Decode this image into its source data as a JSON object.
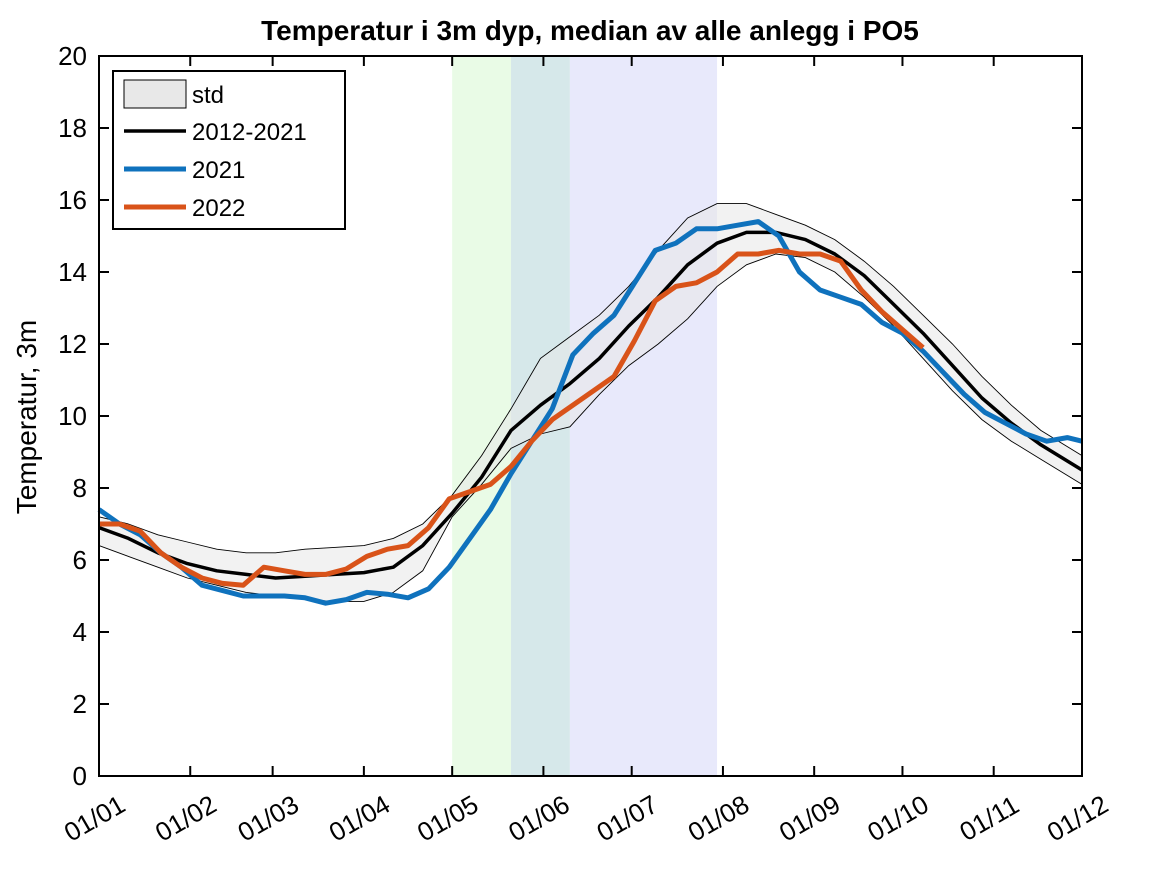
{
  "chart_data": {
    "type": "line",
    "title": "Temperatur i 3m dyp, median av alle anlegg i PO5",
    "xlabel": "",
    "ylabel": "Temperatur, 3m",
    "xlim": [
      0,
      334
    ],
    "ylim": [
      0,
      20
    ],
    "x_ticks": [
      {
        "day": 0,
        "label": "01/01"
      },
      {
        "day": 31,
        "label": "01/02"
      },
      {
        "day": 59,
        "label": "01/03"
      },
      {
        "day": 90,
        "label": "01/04"
      },
      {
        "day": 120,
        "label": "01/05"
      },
      {
        "day": 151,
        "label": "01/06"
      },
      {
        "day": 181,
        "label": "01/07"
      },
      {
        "day": 212,
        "label": "01/08"
      },
      {
        "day": 243,
        "label": "01/09"
      },
      {
        "day": 273,
        "label": "01/10"
      },
      {
        "day": 304,
        "label": "01/11"
      },
      {
        "day": 334,
        "label": "01/12"
      }
    ],
    "y_ticks": [
      0,
      2,
      4,
      6,
      8,
      10,
      12,
      14,
      16,
      18,
      20
    ],
    "shaded_regions": [
      {
        "x0": 120,
        "x1": 140,
        "color": "#e9fbe6"
      },
      {
        "x0": 140,
        "x1": 160,
        "color": "#d6e8ea"
      },
      {
        "x0": 160,
        "x1": 210,
        "color": "#e8e9fb"
      }
    ],
    "band": {
      "name": "std",
      "fill": "#e8e8e8",
      "x": [
        0,
        10,
        20,
        30,
        40,
        50,
        60,
        70,
        80,
        90,
        100,
        110,
        120,
        130,
        140,
        150,
        160,
        170,
        180,
        190,
        200,
        210,
        220,
        230,
        240,
        250,
        260,
        270,
        280,
        290,
        300,
        310,
        320,
        334
      ],
      "upper": [
        7.2,
        7.0,
        6.7,
        6.5,
        6.3,
        6.2,
        6.2,
        6.3,
        6.35,
        6.4,
        6.6,
        7.0,
        7.8,
        8.9,
        10.2,
        11.6,
        12.2,
        12.8,
        13.6,
        14.6,
        15.5,
        15.9,
        15.9,
        15.6,
        15.3,
        14.9,
        14.3,
        13.6,
        12.8,
        12.0,
        11.1,
        10.3,
        9.6,
        8.9
      ],
      "lower": [
        6.4,
        6.1,
        5.8,
        5.5,
        5.3,
        5.1,
        5.0,
        4.9,
        4.85,
        4.85,
        5.1,
        5.7,
        7.2,
        8.1,
        9.1,
        9.5,
        9.7,
        10.6,
        11.4,
        12.0,
        12.7,
        13.6,
        14.2,
        14.5,
        14.4,
        14.0,
        13.3,
        12.5,
        11.6,
        10.7,
        9.9,
        9.3,
        8.8,
        8.1
      ]
    },
    "series": [
      {
        "name": "2012-2021",
        "color": "#000000",
        "x": [
          0,
          10,
          20,
          30,
          40,
          50,
          60,
          70,
          80,
          90,
          100,
          110,
          120,
          130,
          140,
          150,
          160,
          170,
          180,
          190,
          200,
          210,
          220,
          230,
          240,
          250,
          260,
          270,
          280,
          290,
          300,
          310,
          320,
          334
        ],
        "values": [
          6.9,
          6.6,
          6.2,
          5.9,
          5.7,
          5.6,
          5.5,
          5.55,
          5.6,
          5.65,
          5.8,
          6.4,
          7.3,
          8.3,
          9.6,
          10.3,
          10.9,
          11.6,
          12.5,
          13.3,
          14.2,
          14.8,
          15.1,
          15.1,
          14.9,
          14.5,
          13.9,
          13.1,
          12.3,
          11.4,
          10.5,
          9.8,
          9.2,
          8.5
        ]
      },
      {
        "name": "2021",
        "color": "#0f72bd",
        "x": [
          0,
          7,
          14,
          21,
          28,
          35,
          42,
          49,
          56,
          63,
          70,
          77,
          84,
          91,
          98,
          105,
          112,
          119,
          126,
          133,
          140,
          147,
          154,
          161,
          168,
          175,
          182,
          189,
          196,
          203,
          210,
          217,
          224,
          231,
          238,
          245,
          252,
          259,
          266,
          273,
          280,
          287,
          294,
          301,
          308,
          315,
          322,
          329,
          334
        ],
        "values": [
          7.4,
          7.0,
          6.7,
          6.2,
          5.8,
          5.3,
          5.15,
          5.0,
          5.0,
          5.0,
          4.95,
          4.8,
          4.9,
          5.1,
          5.05,
          4.95,
          5.2,
          5.8,
          6.6,
          7.4,
          8.4,
          9.3,
          10.2,
          11.7,
          12.3,
          12.8,
          13.7,
          14.6,
          14.8,
          15.2,
          15.2,
          15.3,
          15.4,
          15.0,
          14.0,
          13.5,
          13.3,
          13.1,
          12.6,
          12.3,
          11.8,
          11.2,
          10.6,
          10.1,
          9.8,
          9.5,
          9.3,
          9.4,
          9.3
        ]
      },
      {
        "name": "2022",
        "color": "#d95319",
        "x": [
          0,
          7,
          14,
          21,
          28,
          35,
          42,
          49,
          56,
          63,
          70,
          77,
          84,
          91,
          98,
          105,
          112,
          119,
          126,
          133,
          140,
          147,
          154,
          161,
          168,
          175,
          182,
          189,
          196,
          203,
          210,
          217,
          224,
          231,
          238,
          245,
          252,
          259,
          266,
          273,
          280
        ],
        "values": [
          7.0,
          7.0,
          6.8,
          6.2,
          5.8,
          5.5,
          5.35,
          5.3,
          5.8,
          5.7,
          5.6,
          5.6,
          5.75,
          6.1,
          6.3,
          6.4,
          6.9,
          7.7,
          7.9,
          8.1,
          8.6,
          9.3,
          9.9,
          10.3,
          10.7,
          11.1,
          12.1,
          13.2,
          13.6,
          13.7,
          14.0,
          14.5,
          14.5,
          14.6,
          14.5,
          14.5,
          14.3,
          13.5,
          12.9,
          12.4,
          11.9
        ]
      }
    ],
    "legend": {
      "position": "top-left",
      "entries": [
        "std",
        "2012-2021",
        "2021",
        "2022"
      ]
    }
  }
}
